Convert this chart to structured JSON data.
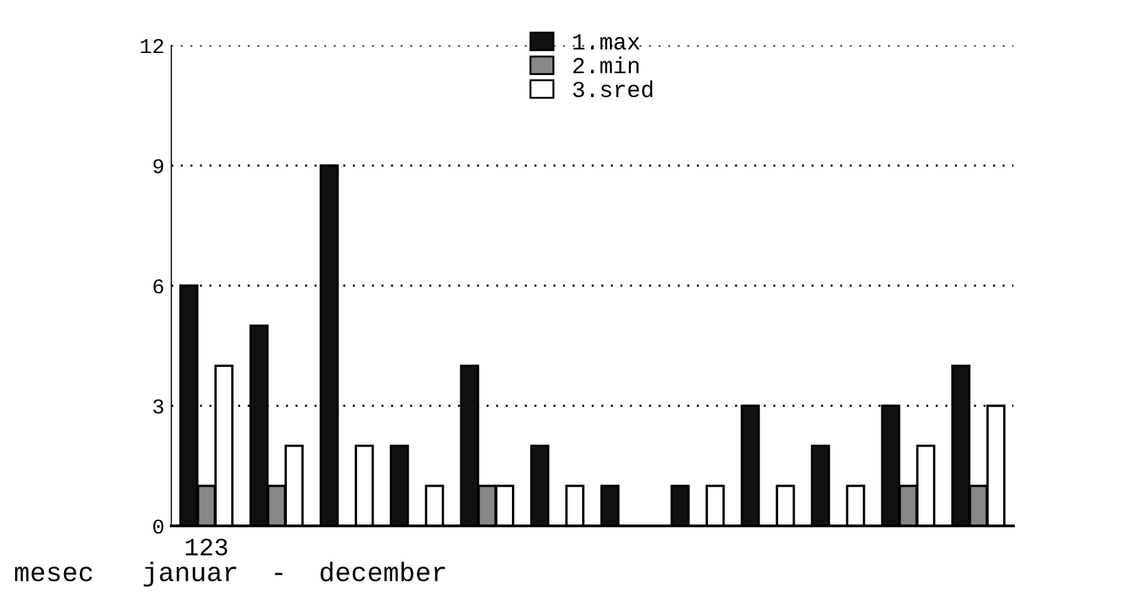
{
  "chart_data": {
    "type": "bar",
    "xlabel": "mesec   januar  -  december",
    "categories": [
      null,
      null,
      null,
      null,
      null,
      null,
      null,
      null,
      null,
      null,
      null,
      null
    ],
    "series": [
      {
        "name": "1.max",
        "color": "#111111",
        "values": [
          6,
          5,
          9,
          2,
          4,
          2,
          1,
          1,
          3,
          2,
          3,
          4
        ]
      },
      {
        "name": "2.min",
        "color": "#888888",
        "values": [
          1,
          1,
          0,
          0,
          1,
          0,
          0,
          0,
          0,
          0,
          1,
          1
        ]
      },
      {
        "name": "3.sred",
        "color": "#ffffff",
        "values": [
          4,
          2,
          2,
          1,
          1,
          1,
          0,
          1,
          1,
          1,
          2,
          3
        ]
      }
    ],
    "annotations": [
      "123"
    ],
    "ylim": [
      0,
      12
    ],
    "yticks": [
      0,
      3,
      6,
      9,
      12
    ],
    "grid": "y",
    "legend": "top"
  }
}
